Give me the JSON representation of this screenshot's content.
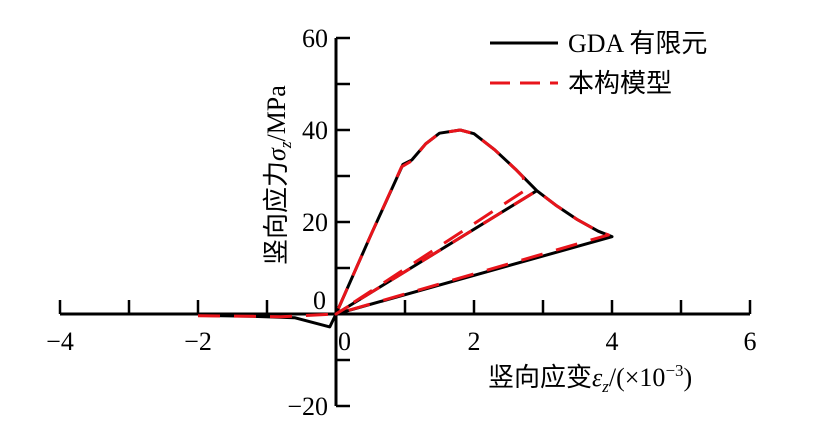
{
  "chart_data": {
    "type": "line",
    "title": "",
    "xlabel": "竖向应变εz/(×10−3)",
    "xlabel_parts": {
      "main": "竖向应变",
      "sym": "ε",
      "sub": "z",
      "rest": "/(×10",
      "sup": "−3",
      "close": ")"
    },
    "ylabel_parts": {
      "main": "竖向应力",
      "sym": "σ",
      "sub": "z",
      "rest": "/MPa"
    },
    "ylabel": "竖向应力σz/MPa",
    "xlim": [
      -4,
      6
    ],
    "ylim": [
      -20,
      60
    ],
    "x_ticks": [
      -4,
      -2,
      0,
      2,
      4,
      6
    ],
    "x_tick_labels": [
      "−4",
      "−2",
      "0",
      "2",
      "4",
      "6"
    ],
    "y_ticks": [
      -20,
      0,
      20,
      40,
      60
    ],
    "y_tick_labels": [
      "−20",
      "0",
      "20",
      "40",
      "60"
    ],
    "grid": false,
    "legend_position": "top-right",
    "series": [
      {
        "name": "GDA 有限元",
        "color": "#000000",
        "style": "solid",
        "points": [
          [
            -2,
            -0.3
          ],
          [
            -1.2,
            -0.5
          ],
          [
            -0.6,
            -0.8
          ],
          [
            -0.09,
            -2.8
          ],
          [
            0,
            0
          ],
          [
            0.5,
            17
          ],
          [
            0.97,
            32.5
          ],
          [
            1.1,
            33.5
          ],
          [
            1.3,
            37
          ],
          [
            1.5,
            39.3
          ],
          [
            1.8,
            40
          ],
          [
            2.0,
            39.2
          ],
          [
            2.3,
            35.7
          ],
          [
            2.6,
            31.5
          ],
          [
            2.91,
            26.8
          ],
          [
            0,
            0
          ],
          [
            2.91,
            26.8
          ],
          [
            3.2,
            23.5
          ],
          [
            3.5,
            20.5
          ],
          [
            3.8,
            18
          ],
          [
            4.0,
            16.8
          ],
          [
            0,
            0
          ]
        ]
      },
      {
        "name": "本构模型",
        "color": "#e8141b",
        "style": "dashed",
        "points": [
          [
            -2,
            -0.4
          ],
          [
            -1.2,
            -0.5
          ],
          [
            -0.8,
            -0.6
          ],
          [
            0,
            0
          ],
          [
            0.5,
            17
          ],
          [
            0.95,
            32
          ],
          [
            1.1,
            33.3
          ],
          [
            1.3,
            37
          ],
          [
            1.5,
            39.3
          ],
          [
            1.8,
            40
          ],
          [
            2.0,
            39.2
          ],
          [
            2.3,
            35.7
          ],
          [
            2.6,
            31.5
          ],
          [
            2.71,
            29.8
          ],
          [
            2.75,
            27
          ],
          [
            0,
            0
          ],
          [
            2.91,
            26.8
          ],
          [
            3.2,
            23.5
          ],
          [
            3.5,
            20.5
          ],
          [
            3.8,
            18
          ],
          [
            3.95,
            17.2
          ],
          [
            0,
            0
          ]
        ]
      }
    ]
  }
}
